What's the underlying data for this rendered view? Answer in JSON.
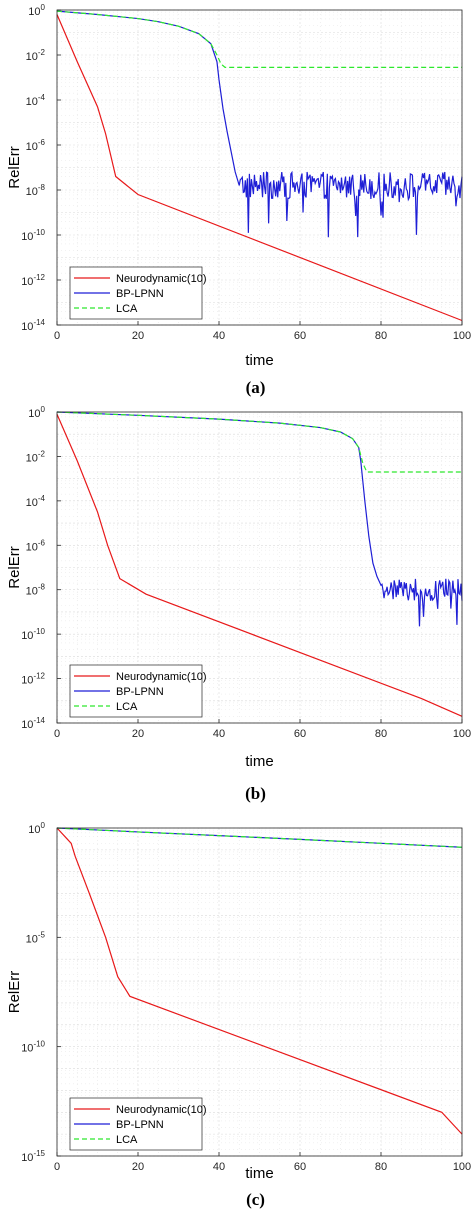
{
  "colors": {
    "neuro": "#e8191a",
    "bp": "#1f1fd6",
    "lca": "#2ee82e",
    "grid": "#dadada",
    "axis": "#262626"
  },
  "chart_data": [
    {
      "type": "line",
      "caption": "(a)",
      "xlabel": "time",
      "ylabel": "RelErr",
      "xlim": [
        0,
        100
      ],
      "ylim_log10": [
        -14,
        0
      ],
      "xticks": [
        "0",
        "20",
        "40",
        "60",
        "80",
        "100"
      ],
      "yticks": [
        {
          "base": "10",
          "exp": "0",
          "value": 0
        },
        {
          "base": "10",
          "exp": "-2",
          "value": -2
        },
        {
          "base": "10",
          "exp": "-4",
          "value": -4
        },
        {
          "base": "10",
          "exp": "-6",
          "value": -6
        },
        {
          "base": "10",
          "exp": "-8",
          "value": -8
        },
        {
          "base": "10",
          "exp": "-10",
          "value": -10
        },
        {
          "base": "10",
          "exp": "-12",
          "value": -12
        },
        {
          "base": "10",
          "exp": "-14",
          "value": -14
        }
      ],
      "grid": true,
      "legend": {
        "position": "bottom-left",
        "entries": [
          "Neurodynamic(10)",
          "BP-LPNN",
          "LCA"
        ]
      },
      "series": [
        {
          "name": "Neurodynamic(10)",
          "style": "solid",
          "color_key": "neuro",
          "x": [
            0,
            5,
            10,
            12,
            14.5,
            20,
            100
          ],
          "log10_y": [
            -0.2,
            -2.3,
            -4.3,
            -5.5,
            -7.4,
            -8.2,
            -13.8
          ]
        },
        {
          "name": "BP-LPNN",
          "style": "solid",
          "color_key": "bp",
          "x": [
            0,
            10,
            20,
            25,
            30,
            35,
            38,
            39.5,
            40,
            41,
            42,
            43,
            44,
            45
          ],
          "log10_y": [
            -0.05,
            -0.2,
            -0.38,
            -0.52,
            -0.72,
            -1.05,
            -1.5,
            -2.3,
            -3.1,
            -4.4,
            -5.4,
            -6.3,
            -7.2,
            -7.8
          ],
          "noise": {
            "from_x": 45,
            "to_x": 100,
            "median_log10": -7.8,
            "amplitude": 0.6,
            "min_log10": -10.2
          }
        },
        {
          "name": "LCA",
          "style": "dashed",
          "color_key": "lca",
          "x": [
            0,
            10,
            20,
            25,
            30,
            35,
            38,
            39.5,
            40.5,
            41.5,
            100
          ],
          "log10_y": [
            -0.05,
            -0.2,
            -0.38,
            -0.52,
            -0.72,
            -1.05,
            -1.5,
            -2.0,
            -2.4,
            -2.55,
            -2.55
          ]
        }
      ]
    },
    {
      "type": "line",
      "caption": "(b)",
      "xlabel": "time",
      "ylabel": "RelErr",
      "xlim": [
        0,
        100
      ],
      "ylim_log10": [
        -14,
        0
      ],
      "xticks": [
        "0",
        "20",
        "40",
        "60",
        "80",
        "100"
      ],
      "yticks": [
        {
          "base": "10",
          "exp": "0",
          "value": 0
        },
        {
          "base": "10",
          "exp": "-2",
          "value": -2
        },
        {
          "base": "10",
          "exp": "-4",
          "value": -4
        },
        {
          "base": "10",
          "exp": "-6",
          "value": -6
        },
        {
          "base": "10",
          "exp": "-8",
          "value": -8
        },
        {
          "base": "10",
          "exp": "-10",
          "value": -10
        },
        {
          "base": "10",
          "exp": "-12",
          "value": -12
        },
        {
          "base": "10",
          "exp": "-14",
          "value": -14
        }
      ],
      "grid": true,
      "legend": {
        "position": "bottom-left",
        "entries": [
          "Neurodynamic(10)",
          "BP-LPNN",
          "LCA"
        ]
      },
      "series": [
        {
          "name": "Neurodynamic(10)",
          "style": "solid",
          "color_key": "neuro",
          "x": [
            0,
            5,
            10,
            12.5,
            15.5,
            22,
            90,
            100
          ],
          "log10_y": [
            -0.1,
            -2.2,
            -4.5,
            -6.0,
            -7.5,
            -8.2,
            -12.9,
            -13.7
          ]
        },
        {
          "name": "BP-LPNN",
          "style": "solid",
          "color_key": "bp",
          "x": [
            0,
            20,
            40,
            55,
            65,
            70,
            73,
            74.5,
            75,
            76,
            77,
            78,
            79,
            80
          ],
          "log10_y": [
            0,
            -0.15,
            -0.32,
            -0.5,
            -0.7,
            -0.9,
            -1.2,
            -1.6,
            -2.2,
            -4.0,
            -5.6,
            -6.8,
            -7.4,
            -7.8
          ],
          "noise": {
            "from_x": 80,
            "to_x": 100,
            "median_log10": -8.0,
            "amplitude": 0.5,
            "min_log10": -9.8
          }
        },
        {
          "name": "LCA",
          "style": "dashed",
          "color_key": "lca",
          "x": [
            0,
            20,
            40,
            55,
            65,
            70,
            73,
            74.5,
            75.5,
            76.5,
            100
          ],
          "log10_y": [
            0,
            -0.15,
            -0.32,
            -0.5,
            -0.7,
            -0.9,
            -1.2,
            -1.6,
            -2.3,
            -2.7,
            -2.7
          ]
        }
      ]
    },
    {
      "type": "line",
      "caption": "(c)",
      "xlabel": "time",
      "ylabel": "RelErr",
      "xlim": [
        0,
        100
      ],
      "ylim_log10": [
        -15,
        0
      ],
      "xticks": [
        "0",
        "20",
        "40",
        "60",
        "80",
        "100"
      ],
      "yticks": [
        {
          "base": "10",
          "exp": "0",
          "value": 0
        },
        {
          "base": "10",
          "exp": "-5",
          "value": -5
        },
        {
          "base": "10",
          "exp": "-10",
          "value": -10
        },
        {
          "base": "10",
          "exp": "-15",
          "value": -15
        }
      ],
      "grid": true,
      "legend": {
        "position": "bottom-left",
        "entries": [
          "Neurodynamic(10)",
          "BP-LPNN",
          "LCA"
        ]
      },
      "series": [
        {
          "name": "Neurodynamic(10)",
          "style": "solid",
          "color_key": "neuro",
          "x": [
            0,
            2.5,
            3.5,
            4.5,
            8,
            12,
            15,
            18,
            95,
            100
          ],
          "log10_y": [
            0,
            -0.5,
            -0.7,
            -1.3,
            -3.0,
            -5.0,
            -6.8,
            -7.7,
            -13.0,
            -14.0
          ]
        },
        {
          "name": "BP-LPNN",
          "style": "solid",
          "color_key": "bp",
          "x": [
            0,
            20,
            40,
            60,
            80,
            100
          ],
          "log10_y": [
            0,
            -0.18,
            -0.35,
            -0.52,
            -0.7,
            -0.88
          ]
        },
        {
          "name": "LCA",
          "style": "dashed",
          "color_key": "lca",
          "x": [
            0,
            20,
            40,
            60,
            80,
            100
          ],
          "log10_y": [
            0,
            -0.18,
            -0.35,
            -0.52,
            -0.7,
            -0.88
          ]
        }
      ]
    }
  ]
}
